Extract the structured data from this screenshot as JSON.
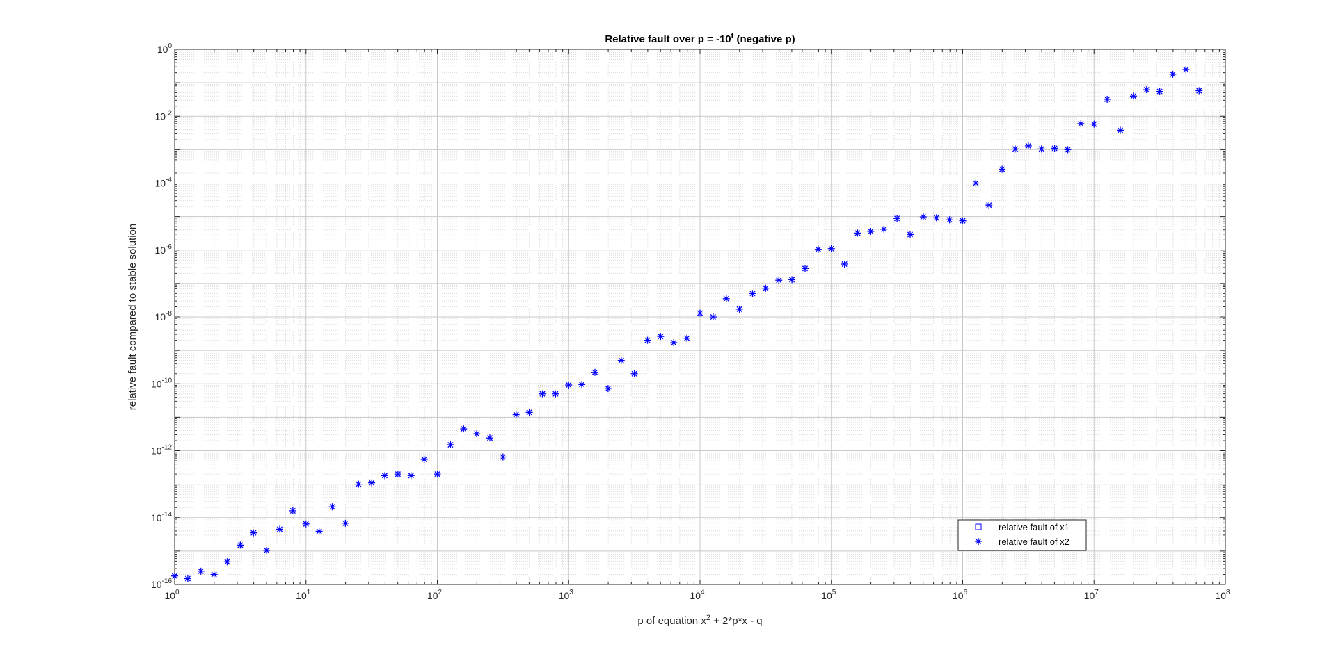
{
  "chart_data": {
    "type": "scatter",
    "title_parts": {
      "prefix": "Relative fault over p = -10",
      "sup": "t",
      "suffix": " (negative p)"
    },
    "xlabel_parts": {
      "prefix": "p of equation x",
      "sup": "2",
      "suffix": " + 2*p*x - q"
    },
    "ylabel": "relative fault compared to stable solution",
    "x_scale": "log",
    "y_scale": "log",
    "xlim": [
      1,
      100000000
    ],
    "ylim": [
      1e-16,
      1
    ],
    "x_ticks": [
      {
        "base": "10",
        "exp": "0"
      },
      {
        "base": "10",
        "exp": "1"
      },
      {
        "base": "10",
        "exp": "2"
      },
      {
        "base": "10",
        "exp": "3"
      },
      {
        "base": "10",
        "exp": "4"
      },
      {
        "base": "10",
        "exp": "5"
      },
      {
        "base": "10",
        "exp": "6"
      },
      {
        "base": "10",
        "exp": "7"
      },
      {
        "base": "10",
        "exp": "8"
      }
    ],
    "y_ticks": [
      {
        "base": "10",
        "exp": "0"
      },
      {
        "base": "10",
        "exp": "-2"
      },
      {
        "base": "10",
        "exp": "-4"
      },
      {
        "base": "10",
        "exp": "-6"
      },
      {
        "base": "10",
        "exp": "-8"
      },
      {
        "base": "10",
        "exp": "-10"
      },
      {
        "base": "10",
        "exp": "-12"
      },
      {
        "base": "10",
        "exp": "-14"
      },
      {
        "base": "10",
        "exp": "-16"
      }
    ],
    "grid": "on (major and minor)",
    "legend_position": "bottom-right",
    "colors": {
      "marker": "#0000ff",
      "grid": "#dcdcdc",
      "axis": "#262626"
    },
    "series": [
      {
        "name": "relative fault of x1",
        "marker": "square",
        "x": [],
        "y": []
      },
      {
        "name": "relative fault of x2",
        "marker": "asterisk",
        "x": [
          1,
          1.259,
          1.585,
          1.995,
          2.512,
          3.162,
          3.981,
          5.012,
          6.31,
          7.943,
          10,
          12.59,
          15.85,
          19.95,
          25.12,
          31.62,
          39.81,
          50.12,
          63.1,
          79.43,
          100,
          125.9,
          158.5,
          199.5,
          251.2,
          316.2,
          398.1,
          501.2,
          631,
          794.3,
          1000,
          1259,
          1585,
          1995,
          2512,
          3162,
          3981,
          5012,
          6310,
          7943,
          10000,
          12590,
          15850,
          19950,
          25120,
          31620,
          39810,
          50120,
          63100,
          79430,
          100000,
          125900,
          158500,
          199500,
          251200,
          316200,
          398100,
          501200,
          631000,
          794300,
          1000000,
          1259000,
          1585000,
          1995000,
          2512000,
          3162000,
          3981000,
          5012000,
          6310000,
          7943000,
          10000000,
          12590000,
          15850000,
          19950000,
          25120000,
          31620000,
          39810000,
          50120000,
          63100000
        ],
        "y": [
          1.8e-16,
          1.5e-16,
          2.5e-16,
          2e-16,
          4.8e-16,
          1.5e-15,
          3.5e-15,
          1.05e-15,
          4.5e-15,
          1.6e-14,
          6.5e-15,
          3.9e-15,
          2.1e-14,
          6.8e-15,
          1e-13,
          1.1e-13,
          1.8e-13,
          2e-13,
          1.8e-13,
          5.5e-13,
          2e-13,
          1.5e-12,
          4.5e-12,
          3.2e-12,
          2.4e-12,
          6.5e-13,
          1.2e-11,
          1.4e-11,
          5e-11,
          5e-11,
          9.2e-11,
          9.5e-11,
          2.2e-10,
          7.2e-11,
          5e-10,
          2e-10,
          2e-09,
          2.6e-09,
          1.7e-09,
          2.3e-09,
          1.3e-08,
          1e-08,
          3.5e-08,
          1.7e-08,
          5e-08,
          7.2e-08,
          1.25e-07,
          1.3e-07,
          2.8e-07,
          1.05e-06,
          1.1e-06,
          3.8e-07,
          3.2e-06,
          3.6e-06,
          4.2e-06,
          8.8e-06,
          2.9e-06,
          9.8e-06,
          9.2e-06,
          8e-06,
          7.5e-06,
          0.0001,
          2.2e-05,
          0.00026,
          0.00105,
          0.0013,
          0.00105,
          0.0011,
          0.001,
          0.006,
          0.0058,
          0.032,
          0.0038,
          0.04,
          0.062,
          0.055,
          0.18,
          0.25,
          0.058
        ]
      }
    ]
  }
}
